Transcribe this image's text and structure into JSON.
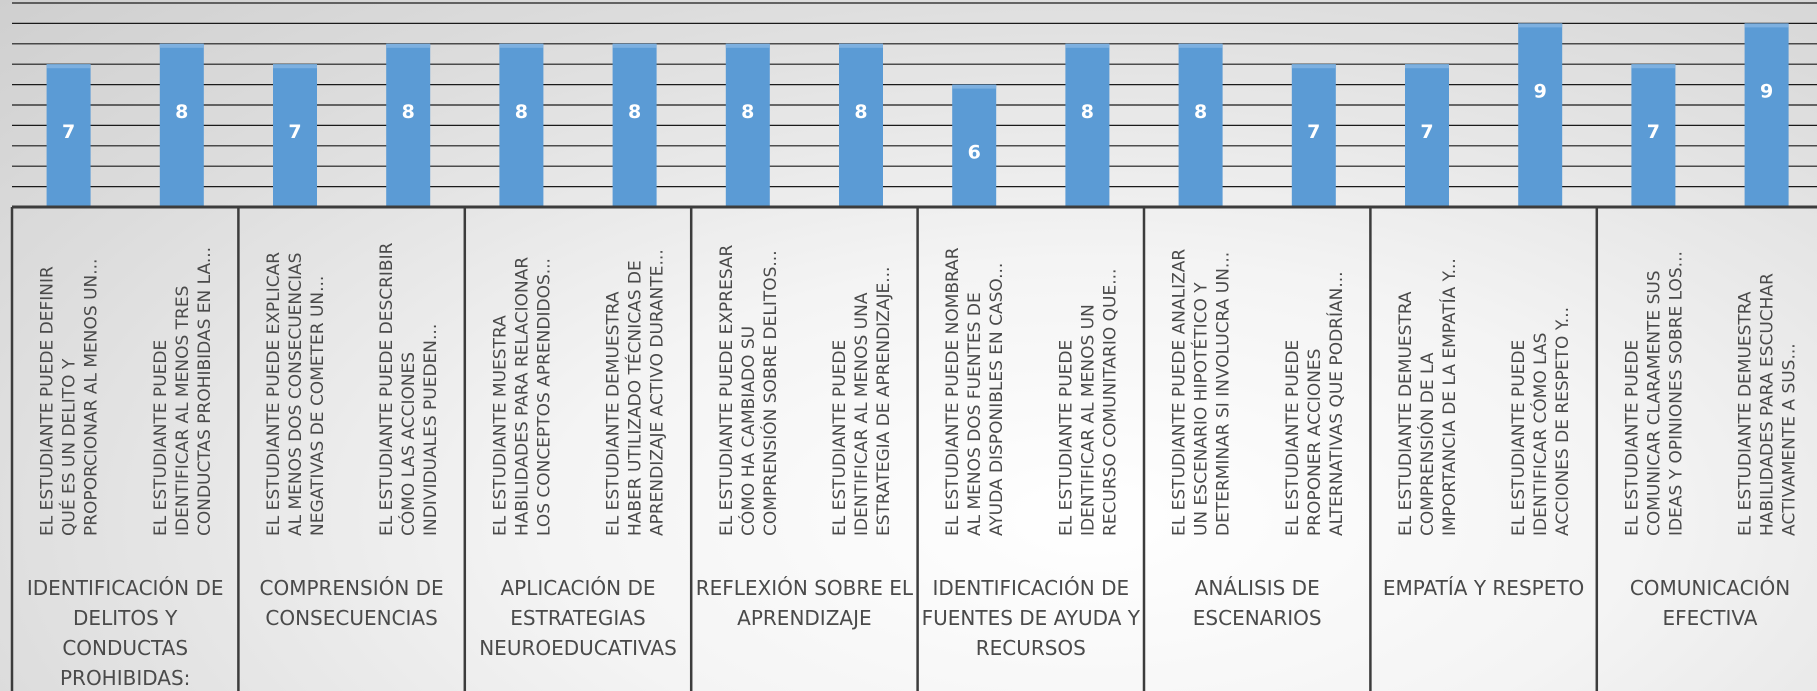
{
  "chart_data": {
    "type": "bar",
    "ylim": [
      0,
      9
    ],
    "grid": true,
    "legend": "none",
    "title": "",
    "xlabel": "",
    "ylabel": "",
    "groups": [
      {
        "name": [
          "IDENTIFICACIÓN DE",
          "DELITOS Y",
          "CONDUCTAS",
          "PROHIBIDAS:"
        ],
        "items": [
          {
            "label": [
              "EL ESTUDIANTE PUEDE DEFINIR",
              "QUÉ ES UN DELITO Y",
              "PROPORCIONAR AL MENOS UN..."
            ],
            "value": 7
          },
          {
            "label": [
              "EL ESTUDIANTE PUEDE",
              "IDENTIFICAR AL MENOS TRES",
              "CONDUCTAS PROHIBIDAS EN LA..."
            ],
            "value": 8
          }
        ]
      },
      {
        "name": [
          "COMPRENSIÓN DE",
          "CONSECUENCIAS"
        ],
        "items": [
          {
            "label": [
              "EL ESTUDIANTE PUEDE EXPLICAR",
              "AL MENOS DOS CONSECUENCIAS",
              "NEGATIVAS DE COMETER UN..."
            ],
            "value": 7
          },
          {
            "label": [
              "EL ESTUDIANTE PUEDE DESCRIBIR",
              "CÓMO LAS ACCIONES",
              "INDIVIDUALES PUEDEN..."
            ],
            "value": 8
          }
        ]
      },
      {
        "name": [
          "APLICACIÓN DE",
          "ESTRATEGIAS",
          "NEUROEDUCATIVAS"
        ],
        "items": [
          {
            "label": [
              "EL ESTUDIANTE MUESTRA",
              "HABILIDADES PARA RELACIONAR",
              "LOS CONCEPTOS APRENDIDOS..."
            ],
            "value": 8
          },
          {
            "label": [
              "EL ESTUDIANTE DEMUESTRA",
              "HABER UTILIZADO TÉCNICAS DE",
              "APRENDIZAJE ACTIVO DURANTE..."
            ],
            "value": 8
          }
        ]
      },
      {
        "name": [
          "REFLEXIÓN SOBRE EL",
          "APRENDIZAJE"
        ],
        "items": [
          {
            "label": [
              "EL ESTUDIANTE PUEDE EXPRESAR",
              "CÓMO HA CAMBIADO SU",
              "COMPRENSIÓN SOBRE DELITOS..."
            ],
            "value": 8
          },
          {
            "label": [
              "EL ESTUDIANTE PUEDE",
              "IDENTIFICAR AL MENOS UNA",
              "ESTRATEGIA DE APRENDIZAJE..."
            ],
            "value": 8
          }
        ]
      },
      {
        "name": [
          "IDENTIFICACIÓN DE",
          "FUENTES DE AYUDA Y",
          "RECURSOS"
        ],
        "items": [
          {
            "label": [
              "EL ESTUDIANTE PUEDE NOMBRAR",
              "AL MENOS DOS FUENTES DE",
              "AYUDA DISPONIBLES EN CASO..."
            ],
            "value": 6
          },
          {
            "label": [
              "EL ESTUDIANTE PUEDE",
              "IDENTIFICAR AL MENOS UN",
              "RECURSO COMUNITARIO QUE..."
            ],
            "value": 8
          }
        ]
      },
      {
        "name": [
          "ANÁLISIS DE",
          "ESCENARIOS"
        ],
        "items": [
          {
            "label": [
              "EL ESTUDIANTE PUEDE ANALIZAR",
              "UN ESCENARIO HIPOTÉTICO Y",
              "DETERMINAR SI INVOLUCRA UN..."
            ],
            "value": 8
          },
          {
            "label": [
              "EL ESTUDIANTE PUEDE",
              "PROPONER ACCIONES",
              "ALTERNATIVAS QUE PODRÍAN..."
            ],
            "value": 7
          }
        ]
      },
      {
        "name": [
          "EMPATÍA Y RESPETO"
        ],
        "items": [
          {
            "label": [
              "EL ESTUDIANTE DEMUESTRA",
              "COMPRENSIÓN DE LA",
              "IMPORTANCIA DE LA EMPATÍA Y..."
            ],
            "value": 7
          },
          {
            "label": [
              "EL ESTUDIANTE PUEDE",
              "IDENTIFICAR CÓMO LAS",
              "ACCIONES DE RESPETO Y..."
            ],
            "value": 9
          }
        ]
      },
      {
        "name": [
          "COMUNICACIÓN",
          "EFECTIVA"
        ],
        "items": [
          {
            "label": [
              "EL ESTUDIANTE PUEDE",
              "COMUNICAR CLARAMENTE SUS",
              "IDEAS Y OPINIONES SOBRE LOS..."
            ],
            "value": 7
          },
          {
            "label": [
              "EL ESTUDIANTE DEMUESTRA",
              "HABILIDADES PARA ESCUCHAR",
              "ACTIVAMENTE A SUS..."
            ],
            "value": 9
          }
        ]
      }
    ]
  }
}
